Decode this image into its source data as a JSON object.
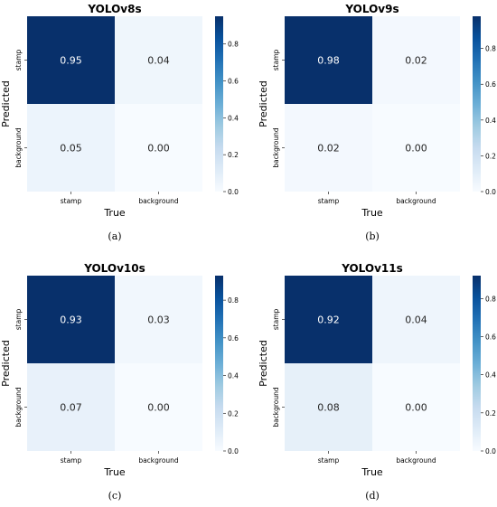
{
  "chart_data": [
    {
      "type": "heatmap",
      "title": "YOLOv8s",
      "xlabel": "True",
      "ylabel": "Predicted",
      "x_categories": [
        "stamp",
        "background"
      ],
      "y_categories": [
        "stamp",
        "background"
      ],
      "values": [
        [
          0.95,
          0.04
        ],
        [
          0.05,
          0.0
        ]
      ],
      "labels": [
        [
          "0.95",
          "0.04"
        ],
        [
          "0.05",
          "0.00"
        ]
      ],
      "colorbar": {
        "min": 0.0,
        "max": 0.95,
        "ticks": [
          0.0,
          0.2,
          0.4,
          0.6,
          0.8
        ],
        "tick_labels": [
          "0.0",
          "0.2",
          "0.4",
          "0.6",
          "0.8"
        ]
      },
      "colormap": "Blues",
      "caption": "(a)"
    },
    {
      "type": "heatmap",
      "title": "YOLOv9s",
      "xlabel": "True",
      "ylabel": "Predicted",
      "x_categories": [
        "stamp",
        "background"
      ],
      "y_categories": [
        "stamp",
        "background"
      ],
      "values": [
        [
          0.98,
          0.02
        ],
        [
          0.02,
          0.0
        ]
      ],
      "labels": [
        [
          "0.98",
          "0.02"
        ],
        [
          "0.02",
          "0.00"
        ]
      ],
      "colorbar": {
        "min": 0.0,
        "max": 0.98,
        "ticks": [
          0.0,
          0.2,
          0.4,
          0.6,
          0.8
        ],
        "tick_labels": [
          "0.0",
          "0.2",
          "0.4",
          "0.6",
          "0.8"
        ]
      },
      "colormap": "Blues",
      "caption": "(b)"
    },
    {
      "type": "heatmap",
      "title": "YOLOv10s",
      "xlabel": "True",
      "ylabel": "Predicted",
      "x_categories": [
        "stamp",
        "background"
      ],
      "y_categories": [
        "stamp",
        "background"
      ],
      "values": [
        [
          0.93,
          0.03
        ],
        [
          0.07,
          0.0
        ]
      ],
      "labels": [
        [
          "0.93",
          "0.03"
        ],
        [
          "0.07",
          "0.00"
        ]
      ],
      "colorbar": {
        "min": 0.0,
        "max": 0.93,
        "ticks": [
          0.0,
          0.2,
          0.4,
          0.6,
          0.8
        ],
        "tick_labels": [
          "0.0",
          "0.2",
          "0.4",
          "0.6",
          "0.8"
        ]
      },
      "colormap": "Blues",
      "caption": "(c)"
    },
    {
      "type": "heatmap",
      "title": "YOLOv11s",
      "xlabel": "True",
      "ylabel": "Predicted",
      "x_categories": [
        "stamp",
        "background"
      ],
      "y_categories": [
        "stamp",
        "background"
      ],
      "values": [
        [
          0.92,
          0.04
        ],
        [
          0.08,
          0.0
        ]
      ],
      "labels": [
        [
          "0.92",
          "0.04"
        ],
        [
          "0.08",
          "0.00"
        ]
      ],
      "colorbar": {
        "min": 0.0,
        "max": 0.92,
        "ticks": [
          0.0,
          0.2,
          0.4,
          0.6,
          0.8
        ],
        "tick_labels": [
          "0.0",
          "0.2",
          "0.4",
          "0.6",
          "0.8"
        ]
      },
      "colormap": "Blues",
      "caption": "(d)"
    }
  ]
}
